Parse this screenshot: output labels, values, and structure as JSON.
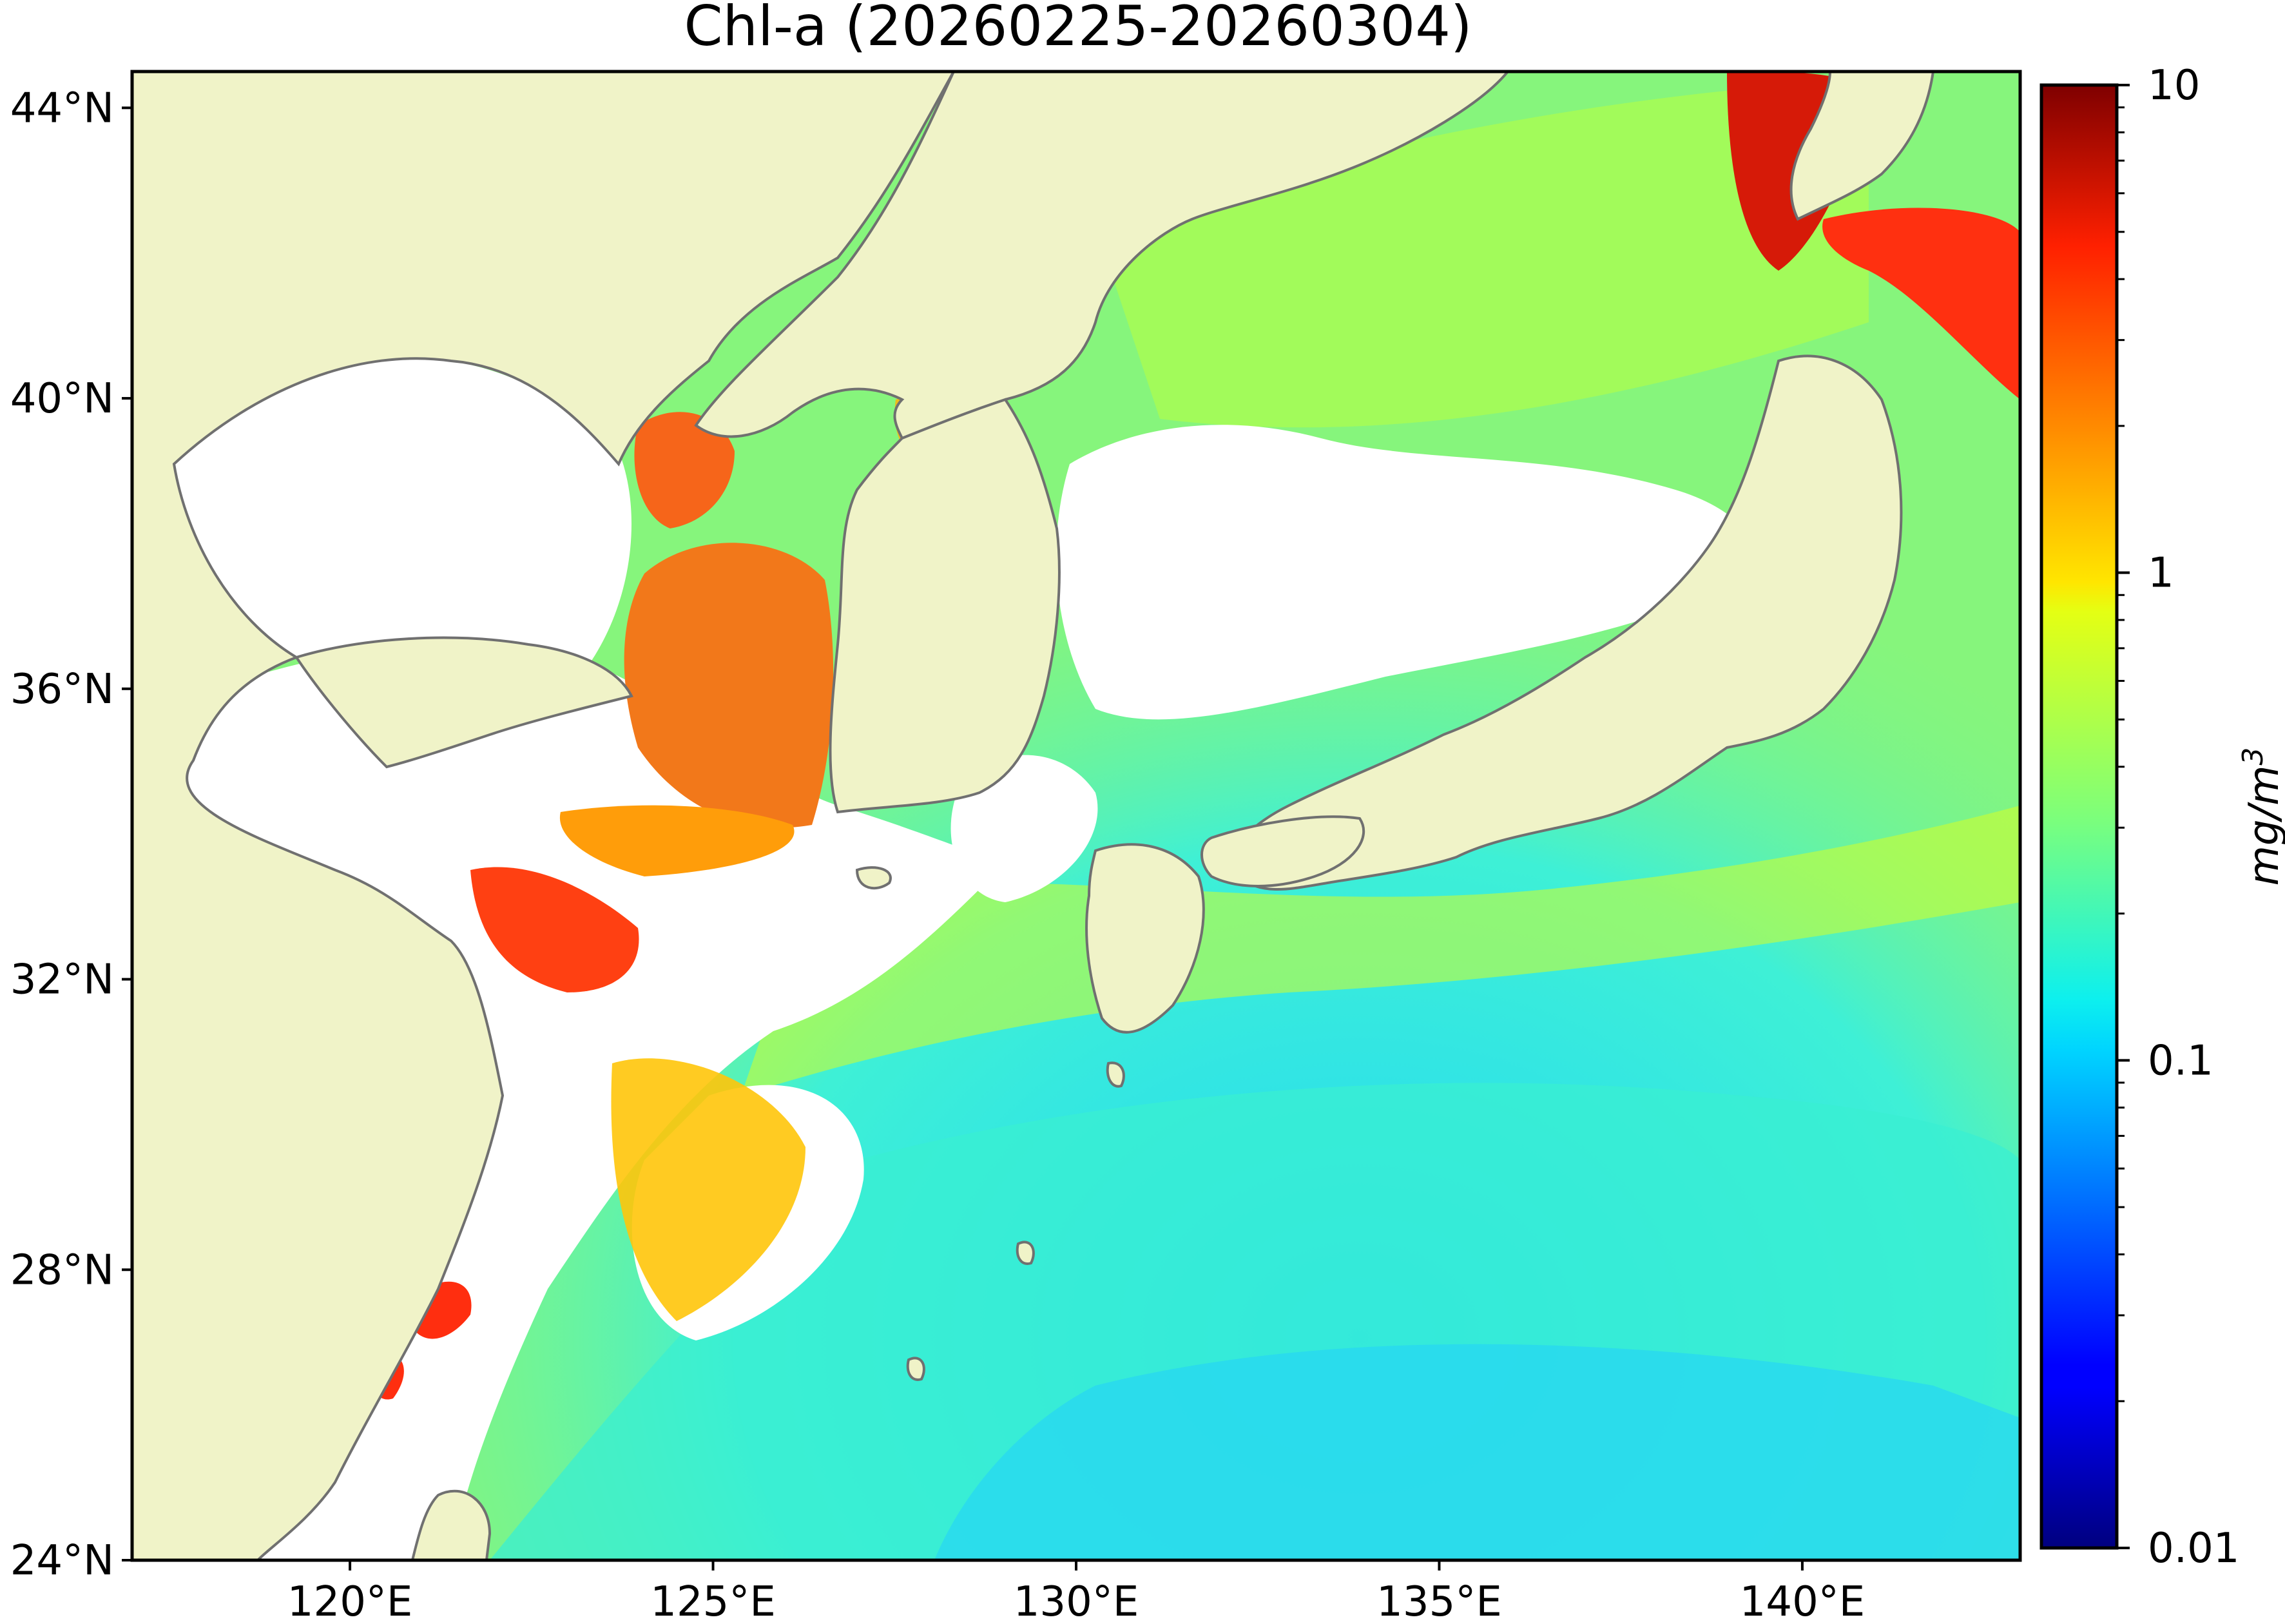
{
  "title": "Chl-a (20260225-20260304)",
  "map": {
    "lon_range": [
      117,
      143
    ],
    "lat_range": [
      24,
      44.5
    ],
    "land_color": "#f0f3c8",
    "nodata_color": "#ffffff",
    "coast_color": "#707070",
    "lon_ticks": [
      {
        "value": 120,
        "label": "120°E"
      },
      {
        "value": 125,
        "label": "125°E"
      },
      {
        "value": 130,
        "label": "130°E"
      },
      {
        "value": 135,
        "label": "135°E"
      },
      {
        "value": 140,
        "label": "140°E"
      }
    ],
    "lat_ticks": [
      {
        "value": 44,
        "label": "44°N"
      },
      {
        "value": 40,
        "label": "40°N"
      },
      {
        "value": 36,
        "label": "36°N"
      },
      {
        "value": 32,
        "label": "32°N"
      },
      {
        "value": 28,
        "label": "28°N"
      },
      {
        "value": 24,
        "label": "24°N"
      }
    ]
  },
  "colorbar": {
    "label": "mg/m",
    "label_superscript": "3",
    "scale": "log",
    "range": [
      0.01,
      10
    ],
    "colormap": "jet",
    "ticks": [
      {
        "value": 10,
        "label": "10"
      },
      {
        "value": 1,
        "label": "1"
      },
      {
        "value": 0.1,
        "label": "0.1"
      },
      {
        "value": 0.01,
        "label": "0.01"
      }
    ]
  }
}
